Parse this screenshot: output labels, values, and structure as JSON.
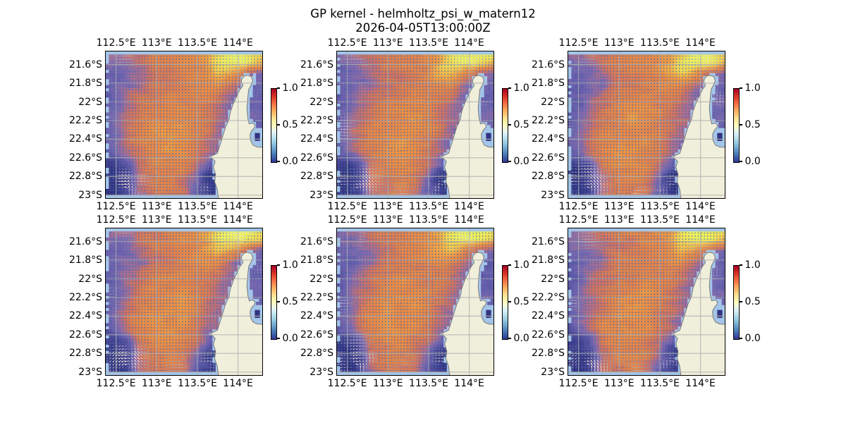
{
  "title": {
    "line1": "GP kernel - helmholtz_psi_w_matern12",
    "line2": "2026-04-05T13:00:00Z"
  },
  "ticks": {
    "x": [
      "112.5°E",
      "113°E",
      "113.5°E",
      "114°E"
    ],
    "y": [
      "21.6°S",
      "21.8°S",
      "22°S",
      "22.2°S",
      "22.4°S",
      "22.6°S",
      "22.8°S",
      "23°S"
    ],
    "colorbar": [
      "1.0",
      "0.5",
      "0.0"
    ]
  },
  "chart_data": {
    "type": "heatmap",
    "title": "GP kernel - helmholtz_psi_w_matern12",
    "subtitle": "2026-04-05T13:00:00Z",
    "grid": {
      "rows": 2,
      "cols": 3
    },
    "panels": [
      "r1c1",
      "r1c2",
      "r1c3",
      "r2c1",
      "r2c2",
      "r2c3"
    ],
    "lon_ticks_deg_east": [
      112.5,
      113.0,
      113.5,
      114.0
    ],
    "lat_ticks_deg_south": [
      21.6,
      21.8,
      22.0,
      22.2,
      22.4,
      22.6,
      22.8,
      23.0
    ],
    "lon_range_deg_east": [
      112.373,
      114.298
    ],
    "lat_range_deg_south": [
      21.46,
      23.032
    ],
    "value_range": [
      0.0,
      1.0
    ],
    "colorbar_ticks": [
      1.0,
      0.5,
      0.0
    ],
    "colorbar_colormap": [
      [
        0.0,
        "#313695"
      ],
      [
        0.1,
        "#4575b4"
      ],
      [
        0.2,
        "#74add1"
      ],
      [
        0.3,
        "#abd9e9"
      ],
      [
        0.4,
        "#e0f3f8"
      ],
      [
        0.5,
        "#ffffbf"
      ],
      [
        0.6,
        "#fee090"
      ],
      [
        0.7,
        "#fdae61"
      ],
      [
        0.8,
        "#f46d43"
      ],
      [
        0.9,
        "#d73027"
      ],
      [
        1.0,
        "#a50026"
      ]
    ],
    "field_colormap": [
      [
        0.0,
        "#2b2d79"
      ],
      [
        0.1,
        "#3c3c8c"
      ],
      [
        0.2,
        "#524c9b"
      ],
      [
        0.3,
        "#6b5fae"
      ],
      [
        0.38,
        "#8169ae"
      ],
      [
        0.46,
        "#a96e90"
      ],
      [
        0.53,
        "#cd7264"
      ],
      [
        0.62,
        "#de8150"
      ],
      [
        0.72,
        "#ea8f47"
      ],
      [
        0.82,
        "#f0ac49"
      ],
      [
        0.91,
        "#f3d253"
      ],
      [
        1.0,
        "#eff25e"
      ]
    ],
    "ocean_color": "#a3c5e9",
    "land_color": "#f0efdb",
    "coast_color": "#7a7a7a",
    "gridline_color": "#b2b2b2",
    "field_cells": [
      50,
      48
    ],
    "field_values": [
      [
        0.48,
        0.5,
        0.52,
        0.55,
        0.6,
        0.62,
        0.66,
        0.68,
        0.72,
        0.74,
        0.88,
        1.0,
        1.0,
        1.0,
        0.98
      ],
      [
        0.36,
        0.38,
        0.42,
        0.52,
        0.58,
        0.6,
        0.64,
        0.68,
        0.7,
        0.78,
        0.95,
        0.99,
        1.0,
        0.95,
        0.85
      ],
      [
        0.32,
        0.33,
        0.37,
        0.46,
        0.55,
        0.58,
        0.6,
        0.63,
        0.68,
        0.76,
        0.85,
        0.8,
        0.62,
        0.45,
        0.36
      ],
      [
        0.3,
        0.31,
        0.38,
        0.4,
        0.54,
        0.58,
        0.61,
        0.62,
        0.65,
        0.7,
        0.7,
        0.56,
        0.42,
        0.32,
        0.3
      ],
      [
        0.26999999999999996,
        0.32,
        0.46,
        0.56,
        0.59,
        0.63,
        0.65,
        0.65,
        0.64,
        0.66,
        0.6,
        0.46,
        0.37,
        0.32,
        0.29
      ],
      [
        0.25,
        0.33,
        0.5,
        0.56,
        0.63,
        0.66,
        0.68,
        0.68,
        0.65,
        0.61,
        0.54,
        0.44,
        0.38,
        0.34,
        0.31
      ],
      [
        0.24000000000000002,
        0.35,
        0.49,
        0.6,
        0.66,
        0.69,
        0.71,
        0.7,
        0.66,
        0.59,
        0.5,
        0.43,
        0.39,
        0.36,
        0.33
      ],
      [
        0.25,
        0.37,
        0.52,
        0.62,
        0.68,
        0.71,
        0.73,
        0.71,
        0.66,
        0.57,
        0.48,
        0.42,
        0.39,
        0.35,
        0.32
      ],
      [
        0.26999999999999996,
        0.39,
        0.54,
        0.64,
        0.7,
        0.73,
        0.73,
        0.7,
        0.63,
        0.53,
        0.44,
        0.39,
        0.36,
        0.33,
        0.3
      ],
      [
        0.24000000000000002,
        0.37,
        0.52,
        0.63,
        0.69,
        0.72,
        0.71,
        0.67,
        0.6,
        0.5,
        0.4,
        0.33,
        0.32,
        0.3,
        0.28
      ],
      [
        0.1,
        0.12,
        0.26,
        0.58,
        0.66,
        0.7,
        0.69,
        0.64,
        0.56,
        0.38,
        0.15,
        0.12,
        0.2,
        0.25,
        0.24
      ],
      [
        0.06,
        0.08,
        0.16,
        0.52,
        0.62,
        0.66,
        0.66,
        0.61,
        0.45,
        0.1,
        0.04,
        0.03,
        0.1,
        0.19,
        0.21
      ],
      [
        0.05,
        0.06,
        0.14,
        0.48,
        0.58,
        0.63,
        0.62,
        0.57,
        0.32,
        0.18,
        0.03,
        0.02,
        0.07,
        0.16,
        0.19
      ],
      [
        0.08,
        0.05,
        0.16,
        0.45,
        0.55,
        0.6,
        0.59,
        0.53,
        0.3,
        0.12,
        0.02,
        0.02,
        0.05,
        0.14,
        0.17
      ]
    ],
    "coastline_lonlat": [
      [
        114.077,
        21.724
      ],
      [
        114.048,
        21.752
      ],
      [
        114.04,
        21.787
      ],
      [
        114.061,
        21.825
      ],
      [
        114.021,
        21.872
      ],
      [
        113.99,
        21.932
      ],
      [
        113.942,
        22.02
      ],
      [
        113.907,
        22.105
      ],
      [
        113.888,
        22.193
      ],
      [
        113.848,
        22.268
      ],
      [
        113.821,
        22.343
      ],
      [
        113.794,
        22.42
      ],
      [
        113.767,
        22.493
      ],
      [
        113.746,
        22.551
      ],
      [
        113.659,
        22.587
      ],
      [
        113.719,
        22.639
      ],
      [
        113.697,
        22.699
      ],
      [
        113.724,
        22.777
      ],
      [
        113.713,
        22.858
      ],
      [
        113.744,
        22.935
      ],
      [
        113.772,
        23.111
      ],
      [
        114.394,
        23.111
      ],
      [
        114.394,
        22.49
      ],
      [
        114.236,
        22.485
      ],
      [
        114.183,
        22.463
      ],
      [
        114.152,
        22.409
      ],
      [
        114.148,
        22.348
      ],
      [
        114.171,
        22.304
      ],
      [
        114.202,
        22.277
      ],
      [
        114.208,
        22.246
      ],
      [
        114.177,
        22.227
      ],
      [
        114.138,
        22.237
      ],
      [
        114.121,
        22.18
      ],
      [
        114.109,
        22.076
      ],
      [
        114.119,
        21.963
      ],
      [
        114.131,
        21.866
      ],
      [
        114.163,
        21.815
      ],
      [
        114.181,
        21.771
      ],
      [
        114.163,
        21.73
      ],
      [
        114.117,
        21.715
      ]
    ],
    "lagoon_mask_lonlat": [
      114.129,
      22.285,
      114.394,
      22.49
    ],
    "lagoon_cell": {
      "lonlat": [
        114.206,
        22.334,
        114.269,
        22.419
      ],
      "value": 0.04
    },
    "flow": {
      "arrow_low_color": "#3f6ba1",
      "arrow_high_color": "#fdf6dc",
      "background_speed": 0.26,
      "swirls": [
        {
          "u": 0.13,
          "v": 0.93,
          "r": 0.15,
          "strength": 0.5,
          "sense": 1
        },
        {
          "u": 0.66,
          "v": 0.92,
          "r": 0.09,
          "strength": 0.45,
          "sense": -1
        }
      ],
      "drifts": [
        {
          "u": 0.13,
          "v": 0.93,
          "r": 0.18,
          "strength": 0.45,
          "angle_deg": 195
        },
        {
          "u": 0.03,
          "v": 0.5,
          "r": 0.11,
          "strength": 0.5,
          "angle_deg": 185
        },
        {
          "u": 0.86,
          "v": 0.05,
          "r": 0.12,
          "strength": 0.45,
          "angle_deg": 40
        },
        {
          "u": 0.97,
          "v": 0.3,
          "r": 0.08,
          "strength": 0.4,
          "angle_deg": 270
        },
        {
          "u": 0.45,
          "v": 0.99,
          "r": 0.12,
          "strength": 0.4,
          "angle_deg": 185
        },
        {
          "u": 0.12,
          "v": 0.04,
          "r": 0.1,
          "strength": 0.4,
          "angle_deg": 5
        }
      ]
    }
  }
}
